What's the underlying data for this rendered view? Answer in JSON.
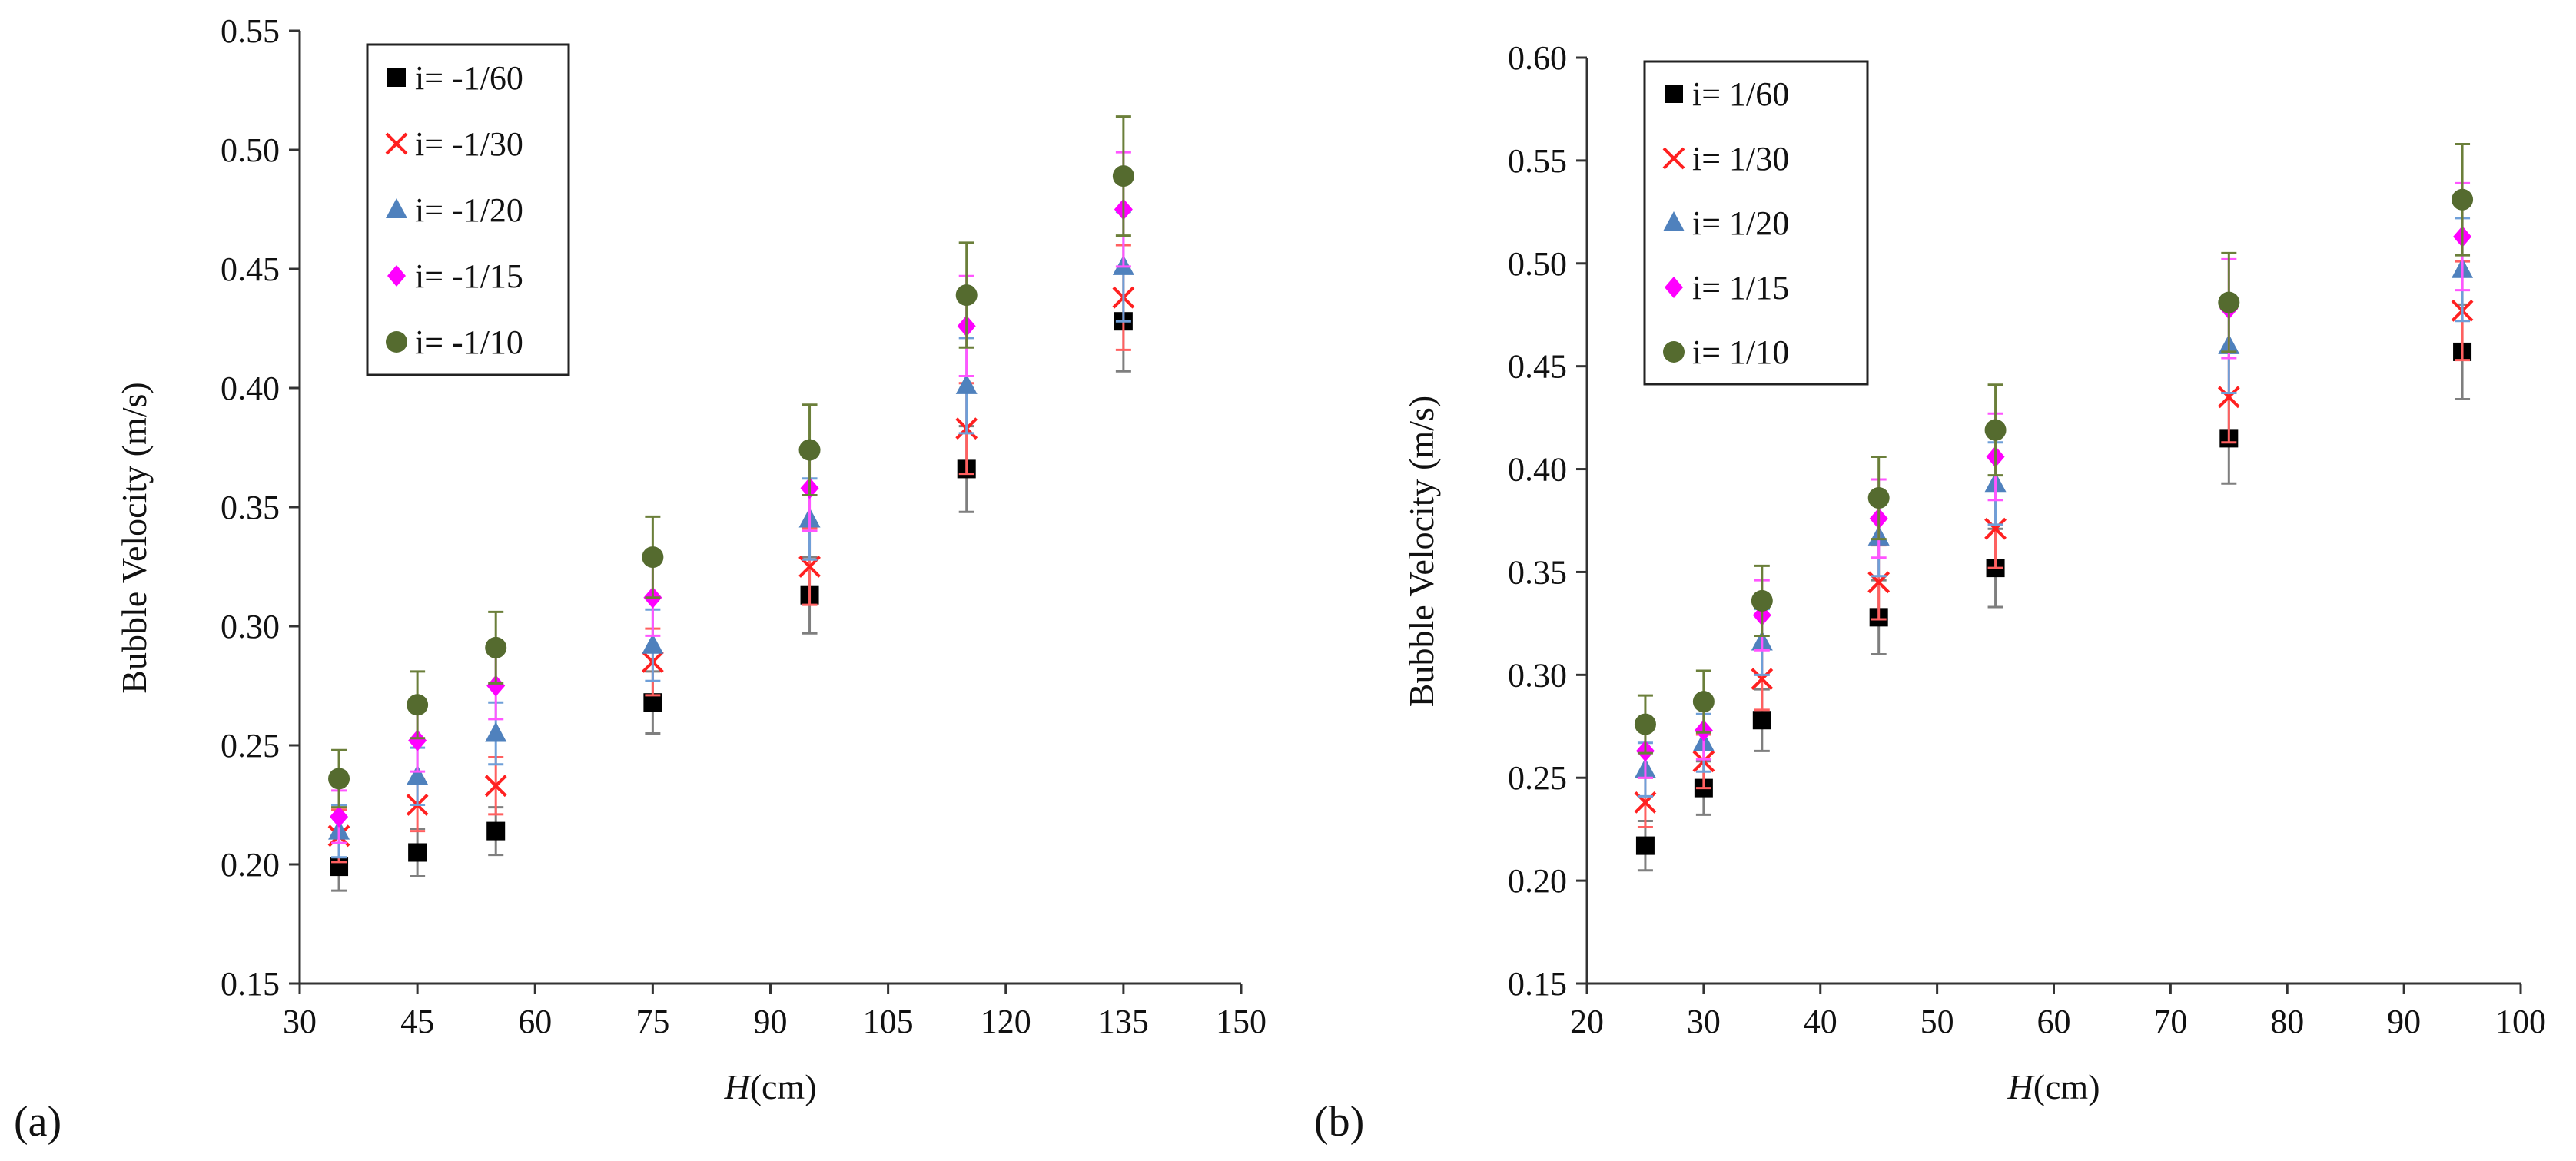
{
  "figure": {
    "panel_labels": [
      "(a)",
      "(b)"
    ]
  },
  "chart_data": [
    {
      "type": "scatter",
      "panel": "(a)",
      "xlabel": "H(cm)",
      "xlabel_var": "H",
      "xlabel_unit": "(cm)",
      "ylabel": "Bubble Velocity (m/s)",
      "xlim": [
        30,
        150
      ],
      "ylim": [
        0.15,
        0.55
      ],
      "xticks": [
        "30",
        "45",
        "60",
        "75",
        "90",
        "105",
        "120",
        "135",
        "150"
      ],
      "yticks": [
        "0.15",
        "0.20",
        "0.25",
        "0.30",
        "0.35",
        "0.40",
        "0.45",
        "0.50",
        "0.55"
      ],
      "grid": false,
      "legend_position": "top-left",
      "x": [
        35,
        45,
        55,
        75,
        95,
        115,
        135
      ],
      "series": [
        {
          "name": "i= -1/60",
          "marker": "square",
          "color": "#000000",
          "errColor": "#7f7f7f",
          "values": [
            0.199,
            0.205,
            0.214,
            0.268,
            0.313,
            0.366,
            0.428
          ],
          "errors": [
            0.01,
            0.01,
            0.01,
            0.013,
            0.016,
            0.018,
            0.021
          ]
        },
        {
          "name": "i= -1/30",
          "marker": "x",
          "color": "#ff2020",
          "errColor": "#ff6060",
          "values": [
            0.212,
            0.225,
            0.233,
            0.285,
            0.325,
            0.383,
            0.438
          ],
          "errors": [
            0.011,
            0.011,
            0.012,
            0.014,
            0.016,
            0.019,
            0.022
          ]
        },
        {
          "name": "i= -1/20",
          "marker": "triangle",
          "color": "#4f81bd",
          "errColor": "#6f9fd8",
          "values": [
            0.214,
            0.237,
            0.255,
            0.292,
            0.345,
            0.401,
            0.451
          ],
          "errors": [
            0.011,
            0.012,
            0.013,
            0.015,
            0.017,
            0.02,
            0.023
          ]
        },
        {
          "name": "i= -1/15",
          "marker": "diamond",
          "color": "#ff00ff",
          "errColor": "#ff55ff",
          "values": [
            0.22,
            0.252,
            0.275,
            0.312,
            0.358,
            0.426,
            0.475
          ],
          "errors": [
            0.011,
            0.013,
            0.014,
            0.016,
            0.018,
            0.021,
            0.024
          ]
        },
        {
          "name": "i= -1/10",
          "marker": "circle",
          "color": "#556b2f",
          "errColor": "#6b7f3a",
          "values": [
            0.236,
            0.267,
            0.291,
            0.329,
            0.374,
            0.439,
            0.489
          ],
          "errors": [
            0.012,
            0.014,
            0.015,
            0.017,
            0.019,
            0.022,
            0.025
          ]
        }
      ]
    },
    {
      "type": "scatter",
      "panel": "(b)",
      "xlabel": "H(cm)",
      "xlabel_var": "H",
      "xlabel_unit": "(cm)",
      "ylabel": "Bubble Velocity (m/s)",
      "xlim": [
        20,
        100
      ],
      "ylim": [
        0.15,
        0.6
      ],
      "xticks": [
        "20",
        "30",
        "40",
        "50",
        "60",
        "70",
        "80",
        "90",
        "100"
      ],
      "yticks": [
        "0.15",
        "0.20",
        "0.25",
        "0.30",
        "0.35",
        "0.40",
        "0.45",
        "0.50",
        "0.55",
        "0.60"
      ],
      "grid": false,
      "legend_position": "top-left",
      "x": [
        25,
        30,
        35,
        45,
        55,
        75,
        95
      ],
      "series": [
        {
          "name": "i= 1/60",
          "marker": "square",
          "color": "#000000",
          "errColor": "#7f7f7f",
          "values": [
            0.217,
            0.245,
            0.278,
            0.328,
            0.352,
            0.415,
            0.457
          ],
          "errors": [
            0.012,
            0.013,
            0.015,
            0.018,
            0.019,
            0.022,
            0.023
          ]
        },
        {
          "name": "i= 1/30",
          "marker": "x",
          "color": "#ff2020",
          "errColor": "#ff6060",
          "values": [
            0.238,
            0.258,
            0.298,
            0.345,
            0.371,
            0.435,
            0.477
          ],
          "errors": [
            0.012,
            0.013,
            0.015,
            0.018,
            0.019,
            0.022,
            0.024
          ]
        },
        {
          "name": "i= 1/20",
          "marker": "triangle",
          "color": "#4f81bd",
          "errColor": "#6f9fd8",
          "values": [
            0.254,
            0.267,
            0.316,
            0.367,
            0.393,
            0.46,
            0.497
          ],
          "errors": [
            0.013,
            0.014,
            0.016,
            0.019,
            0.02,
            0.023,
            0.025
          ]
        },
        {
          "name": "i= 1/15",
          "marker": "diamond",
          "color": "#ff00ff",
          "errColor": "#ff55ff",
          "values": [
            0.263,
            0.273,
            0.329,
            0.376,
            0.406,
            0.478,
            0.513
          ],
          "errors": [
            0.013,
            0.014,
            0.017,
            0.019,
            0.021,
            0.024,
            0.026
          ]
        },
        {
          "name": "i= 1/10",
          "marker": "circle",
          "color": "#556b2f",
          "errColor": "#6b7f3a",
          "values": [
            0.276,
            0.287,
            0.336,
            0.386,
            0.419,
            0.481,
            0.531
          ],
          "errors": [
            0.014,
            0.015,
            0.017,
            0.02,
            0.022,
            0.024,
            0.027
          ]
        }
      ]
    }
  ]
}
